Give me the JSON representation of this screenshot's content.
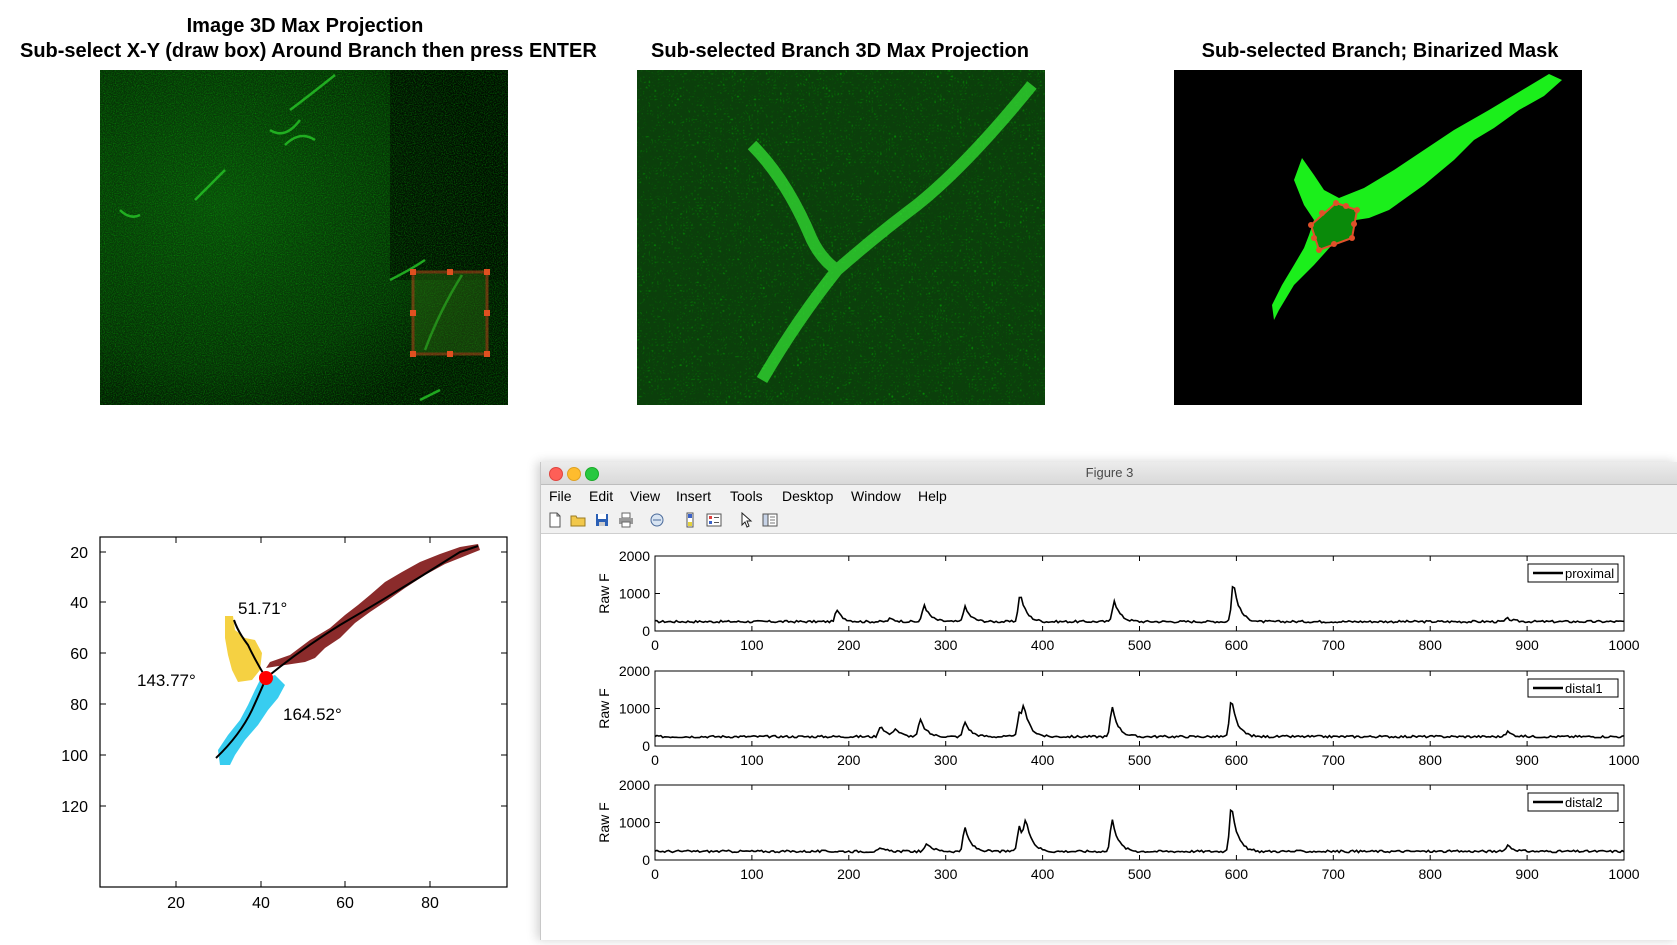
{
  "panels": {
    "image": {
      "title_line1": "Image 3D Max Projection",
      "title_line2": "Sub-select X-Y (draw box) Around Branch then press ENTER"
    },
    "subselected": {
      "title": "Sub-selected Branch 3D Max Projection"
    },
    "mask": {
      "title": "Sub-selected Branch; Binarized Mask"
    }
  },
  "angle_plot": {
    "angles": [
      "51.71°",
      "143.77°",
      "164.52°"
    ],
    "x_ticks": [
      "20",
      "40",
      "60",
      "80"
    ],
    "y_ticks": [
      "20",
      "40",
      "60",
      "80",
      "100",
      "120"
    ],
    "colors": {
      "proximal": "#8b2b2b",
      "distal1": "#f5d142",
      "distal2": "#38cdf0",
      "node": "#ff0000"
    }
  },
  "figure3": {
    "window_title": "Figure 3",
    "menu": [
      "File",
      "Edit",
      "View",
      "Insert",
      "Tools",
      "Desktop",
      "Window",
      "Help"
    ],
    "toolbar_icons": [
      "new-file-icon",
      "open-folder-icon",
      "save-icon",
      "print-icon",
      "link-icon",
      "colorbar-icon",
      "legend-icon",
      "pointer-icon",
      "property-inspector-icon"
    ]
  },
  "chart_data": [
    {
      "type": "line",
      "ylabel": "Raw F",
      "xlim": [
        0,
        1000
      ],
      "ylim": [
        0,
        2000
      ],
      "x_ticks": [
        "0",
        "100",
        "200",
        "300",
        "400",
        "500",
        "600",
        "700",
        "800",
        "900",
        "1000"
      ],
      "y_ticks": [
        "0",
        "1000",
        "2000"
      ],
      "series": [
        {
          "name": "proximal",
          "baseline": 250,
          "peaks": [
            [
              188,
              550
            ],
            [
              243,
              330
            ],
            [
              278,
              700
            ],
            [
              320,
              640
            ],
            [
              377,
              1000
            ],
            [
              474,
              820
            ],
            [
              597,
              1300
            ],
            [
              880,
              330
            ]
          ]
        }
      ]
    },
    {
      "type": "line",
      "ylabel": "Raw F",
      "xlim": [
        0,
        1000
      ],
      "ylim": [
        0,
        2000
      ],
      "x_ticks": [
        "0",
        "100",
        "200",
        "300",
        "400",
        "500",
        "600",
        "700",
        "800",
        "900",
        "1000"
      ],
      "y_ticks": [
        "0",
        "1000",
        "2000"
      ],
      "series": [
        {
          "name": "distal1",
          "baseline": 250,
          "peaks": [
            [
              233,
              550
            ],
            [
              248,
              450
            ],
            [
              274,
              700
            ],
            [
              320,
              640
            ],
            [
              376,
              850
            ],
            [
              381,
              800
            ],
            [
              472,
              1050
            ],
            [
              595,
              1250
            ],
            [
              880,
              380
            ]
          ]
        }
      ]
    },
    {
      "type": "line",
      "ylabel": "Raw F",
      "xlim": [
        0,
        1000
      ],
      "ylim": [
        0,
        2000
      ],
      "x_ticks": [
        "0",
        "100",
        "200",
        "300",
        "400",
        "500",
        "600",
        "700",
        "800",
        "900",
        "1000"
      ],
      "y_ticks": [
        "0",
        "1000",
        "2000"
      ],
      "series": [
        {
          "name": "distal2",
          "baseline": 230,
          "peaks": [
            [
              233,
              300
            ],
            [
              281,
              450
            ],
            [
              320,
              850
            ],
            [
              376,
              900
            ],
            [
              383,
              900
            ],
            [
              472,
              1100
            ],
            [
              595,
              1500
            ],
            [
              880,
              400
            ]
          ]
        }
      ]
    }
  ]
}
